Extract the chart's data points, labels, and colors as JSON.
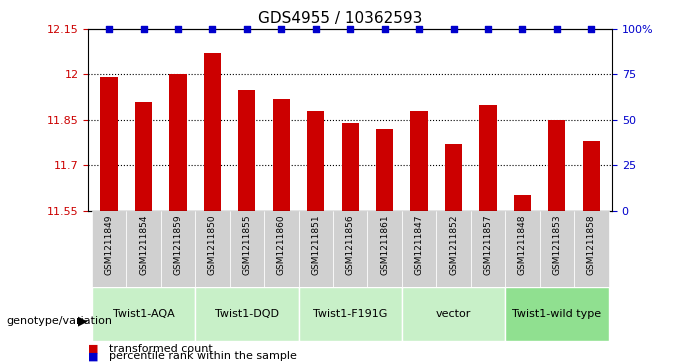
{
  "title": "GDS4955 / 10362593",
  "samples": [
    "GSM1211849",
    "GSM1211854",
    "GSM1211859",
    "GSM1211850",
    "GSM1211855",
    "GSM1211860",
    "GSM1211851",
    "GSM1211856",
    "GSM1211861",
    "GSM1211847",
    "GSM1211852",
    "GSM1211857",
    "GSM1211848",
    "GSM1211853",
    "GSM1211858"
  ],
  "bar_values": [
    11.99,
    11.91,
    12.0,
    12.07,
    11.95,
    11.92,
    11.88,
    11.84,
    11.82,
    11.88,
    11.77,
    11.9,
    11.6,
    11.85,
    11.78
  ],
  "percentile_values": [
    100,
    100,
    100,
    100,
    100,
    100,
    100,
    100,
    100,
    100,
    100,
    100,
    100,
    100,
    100
  ],
  "groups": [
    {
      "label": "Twist1-AQA",
      "start": 0,
      "end": 3,
      "color": "#c8f0c8"
    },
    {
      "label": "Twist1-DQD",
      "start": 3,
      "end": 6,
      "color": "#c8f0c8"
    },
    {
      "label": "Twist1-F191G",
      "start": 6,
      "end": 9,
      "color": "#c8f0c8"
    },
    {
      "label": "vector",
      "start": 9,
      "end": 12,
      "color": "#c8f0c8"
    },
    {
      "label": "Twist1-wild type",
      "start": 12,
      "end": 15,
      "color": "#90e090"
    }
  ],
  "ylim": [
    11.55,
    12.15
  ],
  "y_ticks": [
    11.55,
    11.7,
    11.85,
    12.0,
    12.15
  ],
  "y_tick_labels": [
    "11.55",
    "11.7",
    "11.85",
    "12",
    "12.15"
  ],
  "right_yticks": [
    0,
    25,
    50,
    75,
    100
  ],
  "right_ytick_labels": [
    "0",
    "25",
    "50",
    "75",
    "100%"
  ],
  "bar_color": "#cc0000",
  "percentile_color": "#0000cc",
  "grid_color": "#000000",
  "bg_color": "#ffffff",
  "plot_bg": "#ffffff",
  "genotype_label": "genotype/variation",
  "legend_red": "transformed count",
  "legend_blue": "percentile rank within the sample",
  "sample_bg": "#d0d0d0"
}
